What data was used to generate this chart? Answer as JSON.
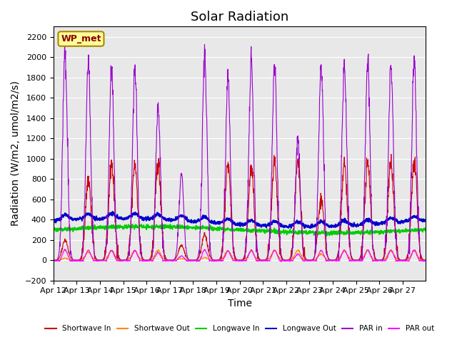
{
  "title": "Solar Radiation",
  "ylabel": "Radiation (W/m2, umol/m2/s)",
  "xlabel": "Time",
  "n_days": 16,
  "ylim": [
    -200,
    2300
  ],
  "yticks": [
    -200,
    0,
    200,
    400,
    600,
    800,
    1000,
    1200,
    1400,
    1600,
    1800,
    2000,
    2200
  ],
  "xtick_labels": [
    "Apr 12",
    "Apr 13",
    "Apr 14",
    "Apr 15",
    "Apr 16",
    "Apr 17",
    "Apr 18",
    "Apr 19",
    "Apr 20",
    "Apr 21",
    "Apr 22",
    "Apr 23",
    "Apr 24",
    "Apr 25",
    "Apr 26",
    "Apr 27"
  ],
  "legend_entries": [
    "Shortwave In",
    "Shortwave Out",
    "Longwave In",
    "Longwave Out",
    "PAR in",
    "PAR out"
  ],
  "legend_colors": [
    "#cc0000",
    "#ff8800",
    "#00cc00",
    "#0000cc",
    "#9900cc",
    "#ff00ff"
  ],
  "annotation_text": "WP_met",
  "annotation_bg": "#ffff99",
  "annotation_border": "#aa8800",
  "background_color": "#e8e8e8",
  "grid_color": "#ffffff",
  "title_fontsize": 13,
  "axis_fontsize": 10,
  "tick_fontsize": 8,
  "sw_in_peaks": [
    200,
    800,
    950,
    950,
    950,
    150,
    250,
    950,
    900,
    950,
    950,
    600,
    950,
    950,
    950,
    950
  ],
  "par_in_peaks": [
    2050,
    1950,
    1880,
    1900,
    1500,
    850,
    2000,
    1780,
    1950,
    1920,
    1200,
    1930,
    1930,
    1950,
    1950,
    1950
  ]
}
